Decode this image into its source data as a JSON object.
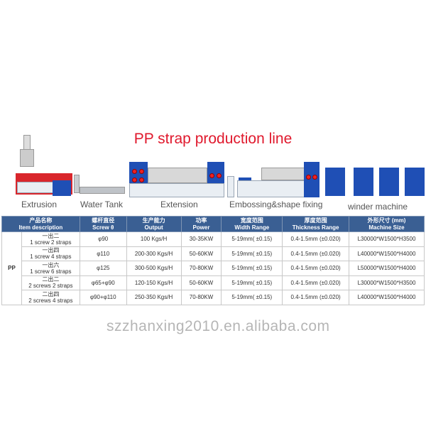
{
  "title": "PP strap production line",
  "stages": [
    "Extrusion",
    "Water Tank",
    "Extension",
    "Embossing&shape fixing",
    "winder machine"
  ],
  "table": {
    "headers": [
      {
        "cn": "产品名称",
        "en": "Item description"
      },
      {
        "cn": "螺杆直径",
        "en": "Screw θ"
      },
      {
        "cn": "生产能力",
        "en": "Output"
      },
      {
        "cn": "功率",
        "en": "Power"
      },
      {
        "cn": "宽度范围",
        "en": "Width Range"
      },
      {
        "cn": "厚度范围",
        "en": "Thickness Range"
      },
      {
        "cn": "外形尺寸 (mm)",
        "en": "Machine Size"
      }
    ],
    "material": "PP",
    "rows": [
      {
        "cn": "一出二",
        "en": "1 screw 2 straps",
        "screw": "φ90",
        "output": "100 Kgs/H",
        "power": "30-35KW",
        "width": "5-19mm( ±0.15)",
        "thickness": "0.4-1.5mm (±0.020)",
        "size": "L30000*W1500*H3500"
      },
      {
        "cn": "一出四",
        "en": "1 screw 4 straps",
        "screw": "φ110",
        "output": "200-300 Kgs/H",
        "power": "50-60KW",
        "width": "5-19mm( ±0.15)",
        "thickness": "0.4-1.5mm (±0.020)",
        "size": "L40000*W1500*H4000"
      },
      {
        "cn": "一出六",
        "en": "1 screw 6 straps",
        "screw": "φ125",
        "output": "300-500 Kgs/H",
        "power": "70-80KW",
        "width": "5-19mm( ±0.15)",
        "thickness": "0.4-1.5mm (±0.020)",
        "size": "L50000*W1500*H4000"
      },
      {
        "cn": "二出二",
        "en": "2 screws 2 straps",
        "screw": "φ65+φ90",
        "output": "120-150 Kgs/H",
        "power": "50-60KW",
        "width": "5-19mm( ±0.15)",
        "thickness": "0.4-1.5mm (±0.020)",
        "size": "L30000*W1500*H3500"
      },
      {
        "cn": "二出四",
        "en": "2 screws 4 straps",
        "screw": "φ90+φ110",
        "output": "250-350 Kgs/H",
        "power": "70-80KW",
        "width": "5-19mm( ±0.15)",
        "thickness": "0.4-1.5mm (±0.020)",
        "size": "L40000*W1500*H4000"
      }
    ]
  },
  "watermark": "szzhanxing2010.en.alibaba.com"
}
